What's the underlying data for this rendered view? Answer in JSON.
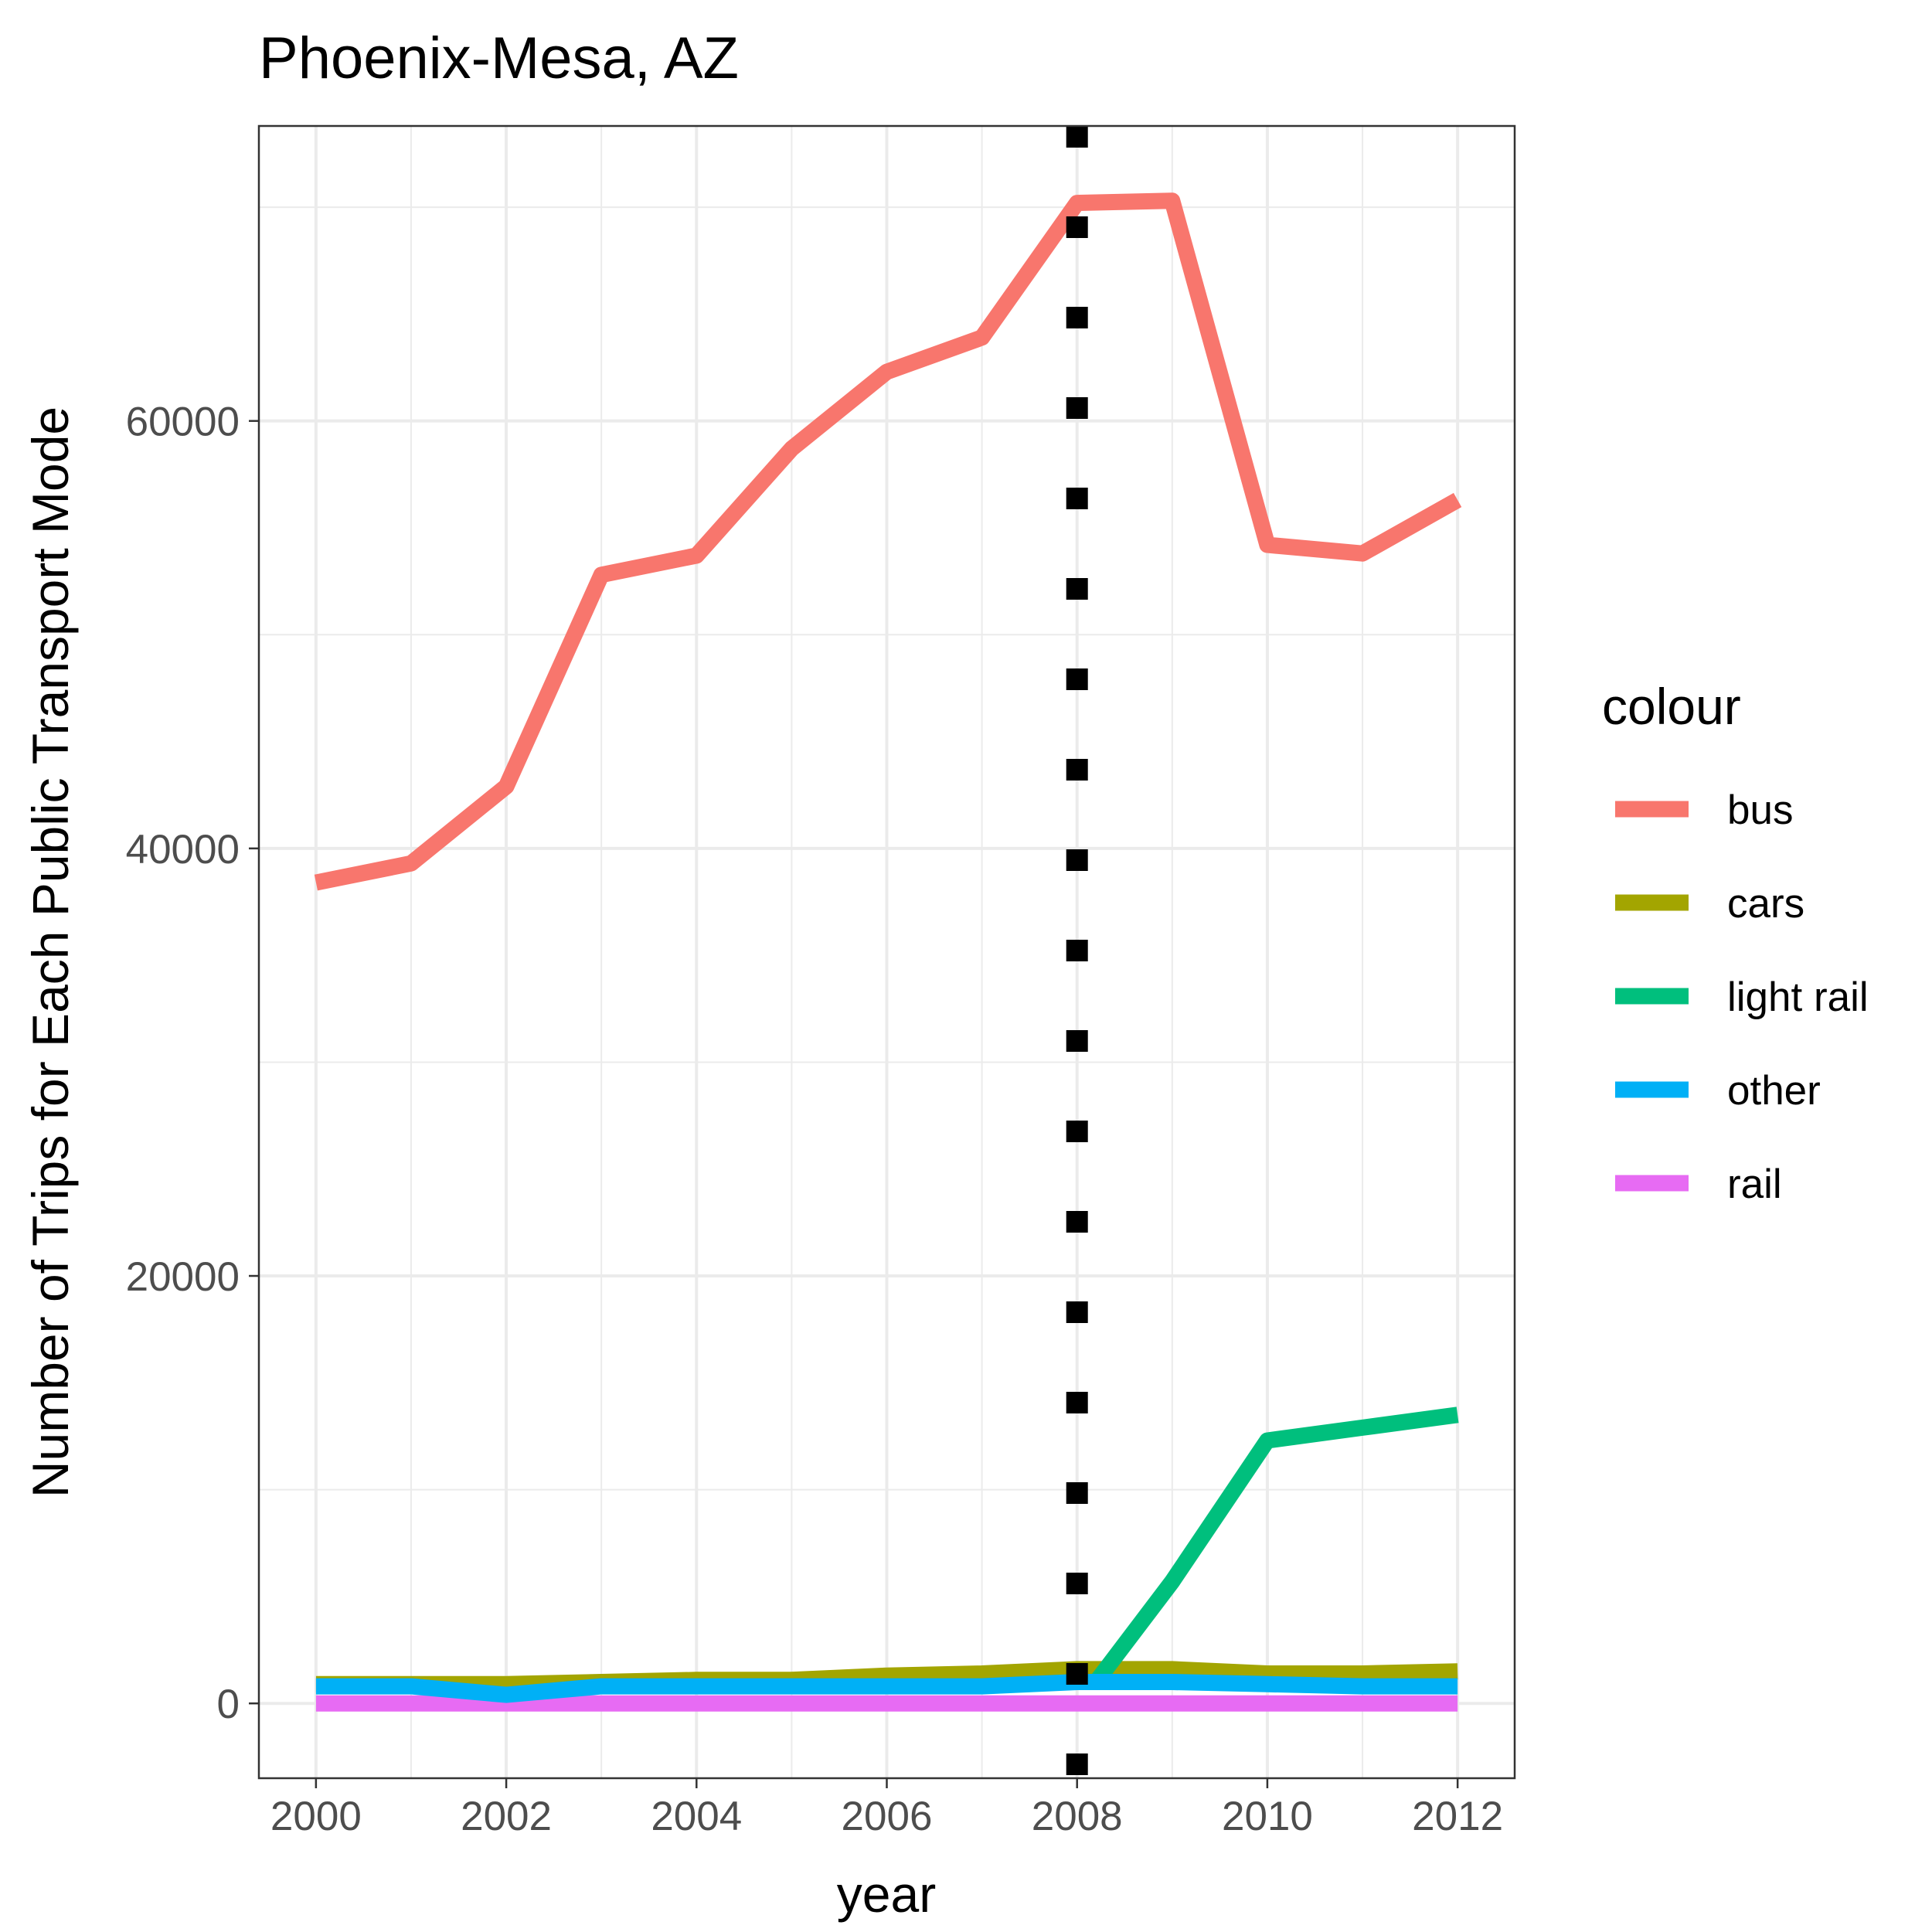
{
  "chart_data": {
    "type": "line",
    "title": "Phoenix-Mesa, AZ",
    "xlabel": "year",
    "ylabel": "Number of Trips for Each Public Transport Mode",
    "xlim": [
      1999.4,
      2012.6
    ],
    "ylim": [
      -3500,
      73800
    ],
    "x_ticks": [
      2000,
      2002,
      2004,
      2006,
      2008,
      2010,
      2012
    ],
    "x_tick_labels": [
      "2000",
      "2002",
      "2004",
      "2006",
      "2008",
      "2010",
      "2012"
    ],
    "y_ticks": [
      0,
      20000,
      40000,
      60000
    ],
    "y_tick_labels": [
      "0",
      "20000",
      "40000",
      "60000"
    ],
    "grid": true,
    "legend": {
      "title": "colour",
      "position": "right"
    },
    "series": [
      {
        "name": "bus",
        "color": "#F8766D",
        "x": [
          2000,
          2001,
          2002,
          2003,
          2004,
          2005,
          2006,
          2007,
          2008,
          2009,
          2010,
          2011,
          2012
        ],
        "values": [
          38400,
          39300,
          42900,
          52800,
          53700,
          58700,
          62300,
          63900,
          70200,
          70300,
          54200,
          53800,
          56300
        ]
      },
      {
        "name": "cars",
        "color": "#A3A500",
        "x": [
          2000,
          2001,
          2002,
          2003,
          2004,
          2005,
          2006,
          2007,
          2008,
          2009,
          2010,
          2011,
          2012
        ],
        "values": [
          900,
          900,
          900,
          1000,
          1100,
          1100,
          1300,
          1400,
          1600,
          1600,
          1400,
          1400,
          1500
        ]
      },
      {
        "name": "light rail",
        "color": "#00BF7D",
        "x": [
          2008.2,
          2009,
          2010,
          2011,
          2012
        ],
        "values": [
          1000,
          5700,
          12300,
          12900,
          13500
        ]
      },
      {
        "name": "other",
        "color": "#00B0F6",
        "x": [
          2000,
          2001,
          2002,
          2003,
          2004,
          2005,
          2006,
          2007,
          2008,
          2009,
          2010,
          2011,
          2012
        ],
        "values": [
          800,
          800,
          400,
          800,
          800,
          800,
          800,
          800,
          1000,
          1000,
          900,
          800,
          800
        ]
      },
      {
        "name": "rail",
        "color": "#E76BF3",
        "x": [
          2000,
          2001,
          2002,
          2003,
          2004,
          2005,
          2006,
          2007,
          2008,
          2009,
          2010,
          2011,
          2012
        ],
        "values": [
          0,
          0,
          0,
          0,
          0,
          0,
          0,
          0,
          0,
          0,
          0,
          0,
          0
        ]
      }
    ],
    "reference_line": {
      "x": 2008,
      "style": "dotted",
      "color": "#000000"
    }
  }
}
